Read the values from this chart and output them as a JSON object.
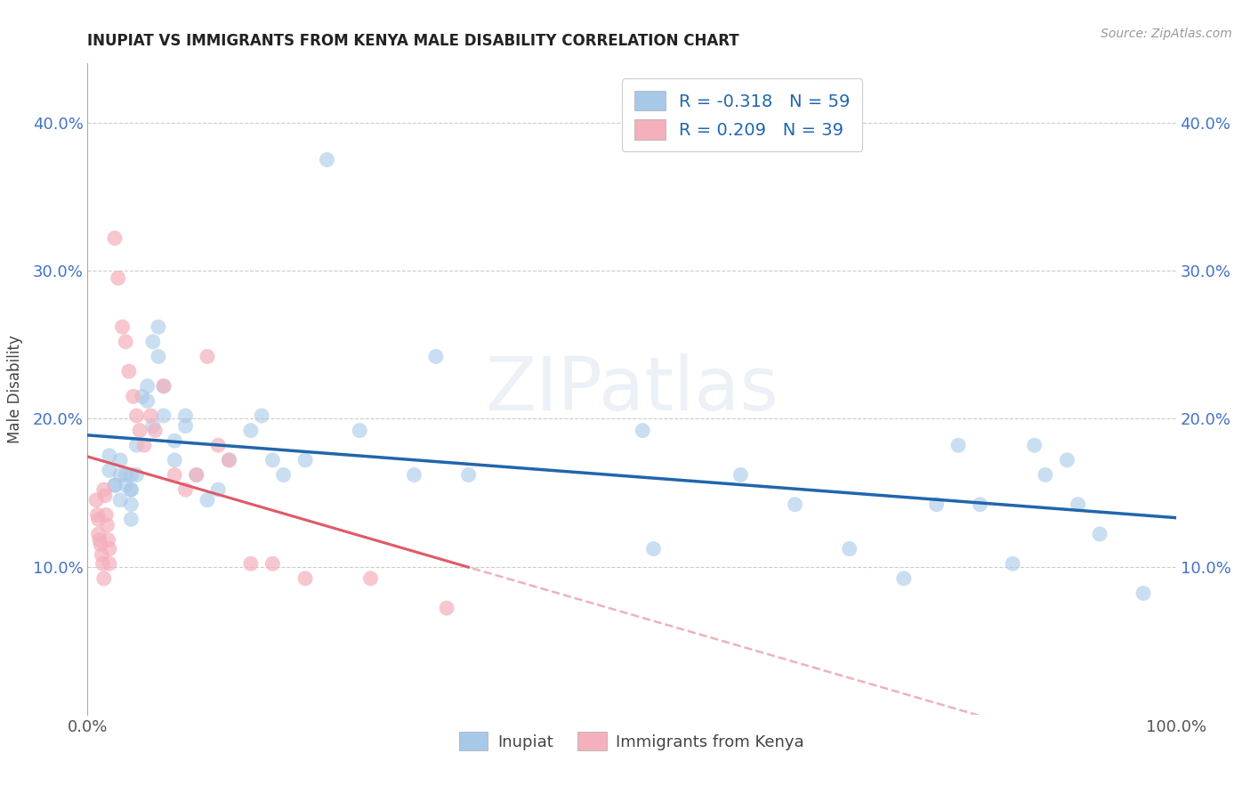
{
  "title": "INUPIAT VS IMMIGRANTS FROM KENYA MALE DISABILITY CORRELATION CHART",
  "source": "Source: ZipAtlas.com",
  "ylabel": "Male Disability",
  "watermark": "ZIPatlas",
  "inupiat_R": -0.318,
  "inupiat_N": 59,
  "kenya_R": 0.209,
  "kenya_N": 39,
  "inupiat_color": "#a8c8e8",
  "kenya_color": "#f4b0bc",
  "inupiat_line_color": "#2166ac",
  "kenya_line_color": "#e05a6a",
  "kenya_dash_color": "#e8a0a8",
  "ylim_min": 0.0,
  "ylim_max": 0.44,
  "xlim_min": 0.0,
  "xlim_max": 1.0,
  "yticks": [
    0.0,
    0.1,
    0.2,
    0.3,
    0.4
  ],
  "ytick_labels": [
    "",
    "10.0%",
    "20.0%",
    "30.0%",
    "40.0%"
  ],
  "xticks": [
    0.0,
    0.25,
    0.5,
    0.75,
    1.0
  ],
  "xtick_labels": [
    "0.0%",
    "",
    "",
    "",
    "100.0%"
  ],
  "grid_color": "#cccccc",
  "background_color": "#ffffff",
  "inupiat_x": [
    0.02,
    0.02,
    0.025,
    0.025,
    0.03,
    0.03,
    0.03,
    0.035,
    0.035,
    0.04,
    0.04,
    0.04,
    0.04,
    0.04,
    0.045,
    0.045,
    0.05,
    0.055,
    0.055,
    0.06,
    0.06,
    0.065,
    0.065,
    0.07,
    0.07,
    0.08,
    0.08,
    0.09,
    0.09,
    0.1,
    0.11,
    0.12,
    0.13,
    0.15,
    0.16,
    0.17,
    0.18,
    0.2,
    0.22,
    0.25,
    0.3,
    0.32,
    0.35,
    0.51,
    0.52,
    0.6,
    0.65,
    0.7,
    0.75,
    0.78,
    0.8,
    0.82,
    0.85,
    0.87,
    0.88,
    0.9,
    0.91,
    0.93,
    0.97
  ],
  "inupiat_y": [
    0.175,
    0.165,
    0.155,
    0.155,
    0.162,
    0.172,
    0.145,
    0.155,
    0.162,
    0.162,
    0.152,
    0.142,
    0.132,
    0.152,
    0.162,
    0.182,
    0.215,
    0.222,
    0.212,
    0.195,
    0.252,
    0.242,
    0.262,
    0.222,
    0.202,
    0.185,
    0.172,
    0.195,
    0.202,
    0.162,
    0.145,
    0.152,
    0.172,
    0.192,
    0.202,
    0.172,
    0.162,
    0.172,
    0.375,
    0.192,
    0.162,
    0.242,
    0.162,
    0.192,
    0.112,
    0.162,
    0.142,
    0.112,
    0.092,
    0.142,
    0.182,
    0.142,
    0.102,
    0.182,
    0.162,
    0.172,
    0.142,
    0.122,
    0.082
  ],
  "kenya_x": [
    0.008,
    0.009,
    0.01,
    0.01,
    0.011,
    0.012,
    0.013,
    0.014,
    0.015,
    0.015,
    0.016,
    0.017,
    0.018,
    0.019,
    0.02,
    0.02,
    0.025,
    0.028,
    0.032,
    0.035,
    0.038,
    0.042,
    0.045,
    0.048,
    0.052,
    0.058,
    0.062,
    0.07,
    0.08,
    0.09,
    0.1,
    0.11,
    0.12,
    0.13,
    0.15,
    0.17,
    0.2,
    0.26,
    0.33
  ],
  "kenya_y": [
    0.145,
    0.135,
    0.132,
    0.122,
    0.118,
    0.115,
    0.108,
    0.102,
    0.092,
    0.152,
    0.148,
    0.135,
    0.128,
    0.118,
    0.112,
    0.102,
    0.322,
    0.295,
    0.262,
    0.252,
    0.232,
    0.215,
    0.202,
    0.192,
    0.182,
    0.202,
    0.192,
    0.222,
    0.162,
    0.152,
    0.162,
    0.242,
    0.182,
    0.172,
    0.102,
    0.102,
    0.092,
    0.092,
    0.072
  ]
}
